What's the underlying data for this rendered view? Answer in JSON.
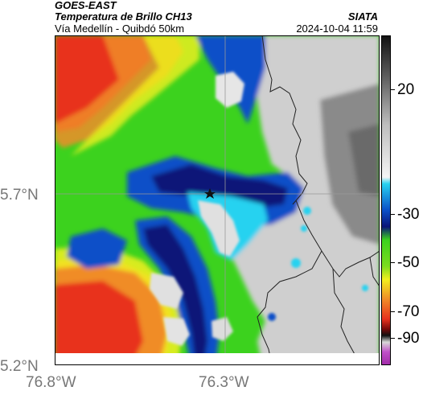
{
  "header": {
    "source": "GOES-EAST",
    "product": "Temperatura de Brillo CH13",
    "org": "SIATA",
    "region": "Vía Medellín - Quibdó 50km",
    "datetime": "2024-10-04 11:59"
  },
  "axes": {
    "lat_ticks": [
      "5.7°N",
      "5.2°N"
    ],
    "lon_ticks": [
      "76.8°W",
      "76.3°W"
    ]
  },
  "colorbar": {
    "ticks": [
      "20",
      "-30",
      "-50",
      "-70",
      "-90"
    ]
  },
  "colors": {
    "ocean_red": "#e8321e",
    "orange": "#f08c28",
    "yellow": "#f2f01e",
    "green": "#3cd21e",
    "cyan": "#28d2f0",
    "blue": "#0a50c8",
    "navy": "#0a1478",
    "cloud_gray": "#d2d2d2",
    "dark_gray": "#707070"
  }
}
